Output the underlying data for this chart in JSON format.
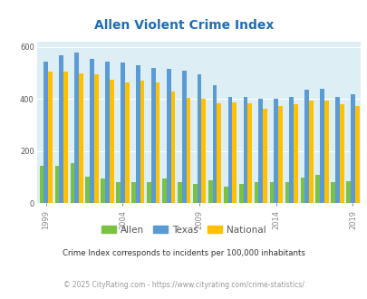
{
  "title": "Allen Violent Crime Index",
  "years": [
    1999,
    2000,
    2001,
    2002,
    2003,
    2004,
    2005,
    2006,
    2007,
    2008,
    2009,
    2010,
    2011,
    2012,
    2013,
    2014,
    2015,
    2016,
    2017,
    2018,
    2019,
    2020
  ],
  "allen": [
    145,
    145,
    155,
    102,
    95,
    82,
    82,
    80,
    95,
    82,
    75,
    88,
    65,
    75,
    80,
    82,
    80,
    100,
    110,
    80,
    85,
    0
  ],
  "texas": [
    545,
    570,
    580,
    555,
    545,
    540,
    530,
    520,
    515,
    510,
    495,
    455,
    410,
    410,
    400,
    400,
    408,
    435,
    440,
    408,
    420,
    0
  ],
  "national": [
    507,
    507,
    500,
    495,
    475,
    465,
    470,
    465,
    430,
    405,
    403,
    385,
    387,
    385,
    362,
    373,
    380,
    395,
    395,
    380,
    375,
    0
  ],
  "xtick_positions": [
    1999,
    2004,
    2009,
    2014,
    2019
  ],
  "ylim": [
    0,
    620
  ],
  "yticks": [
    0,
    200,
    400,
    600
  ],
  "allen_color": "#7bc142",
  "texas_color": "#5b9bd5",
  "national_color": "#ffc000",
  "bg_color": "#ddeef5",
  "title_color": "#1f6eb5",
  "subtitle": "Crime Index corresponds to incidents per 100,000 inhabitants",
  "footnote": "© 2025 CityRating.com - https://www.cityrating.com/crime-statistics/",
  "subtitle_color": "#333333",
  "footnote_color": "#999999"
}
